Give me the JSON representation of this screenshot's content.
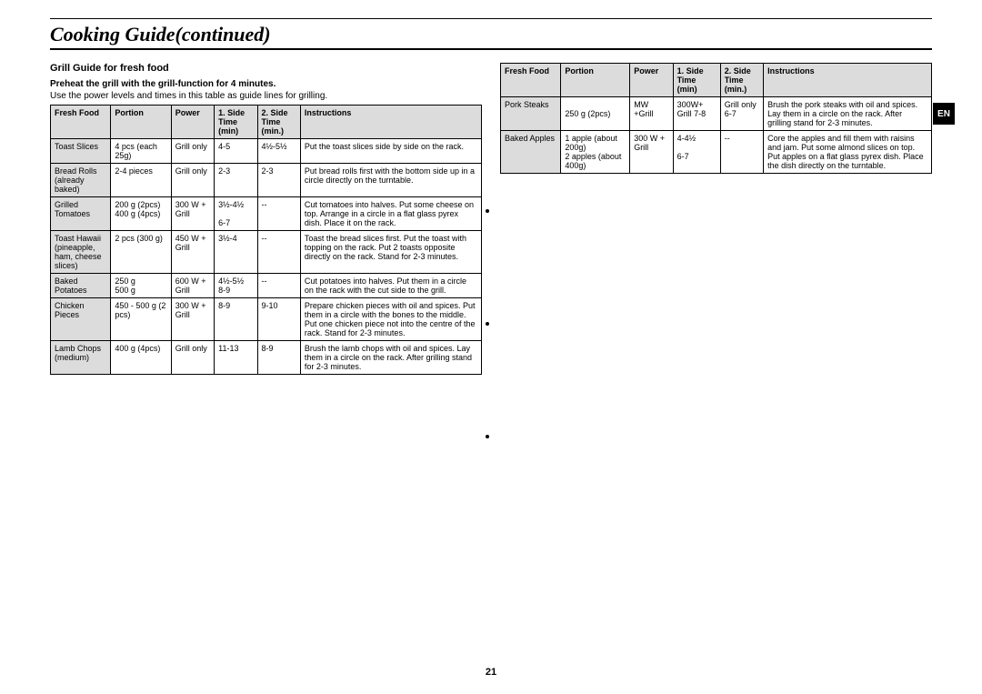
{
  "page_title": "Cooking Guide(continued)",
  "lang_tab": "EN",
  "page_number": "21",
  "section": {
    "title": "Grill Guide for fresh food",
    "preheat": "Preheat the grill with the grill-function for 4 minutes.",
    "note": "Use the power levels and times in this table as guide lines for grilling."
  },
  "headers": {
    "food": "Fresh Food",
    "portion": "Portion",
    "power": "Power",
    "side1": "1. Side Time (min)",
    "side2": "2. Side Time (min.)",
    "instr": "Instructions"
  },
  "left_rows": [
    {
      "food": "Toast Slices",
      "portion": "4 pcs (each 25g)",
      "power": "Grill only",
      "s1": "4-5",
      "s2": "4½-5½",
      "instr": "Put the toast slices side by side on the rack."
    },
    {
      "food": "Bread Rolls (already baked)",
      "portion": "2-4 pieces",
      "power": "Grill only",
      "s1": "2-3",
      "s2": "2-3",
      "instr": "Put bread rolls first with the bottom side up in a circle directly on the turntable."
    },
    {
      "food": "Grilled Tomatoes",
      "portion": "200 g (2pcs)\n400 g (4pcs)",
      "power": "300 W + Grill",
      "s1": "3½-4½\n\n6-7",
      "s2": "--",
      "instr": "Cut tomatoes into halves. Put some cheese on top. Arrange in a circle in a flat glass pyrex dish. Place it on the rack."
    },
    {
      "food": "Toast Hawaii (pineapple, ham, cheese slices)",
      "portion": "2 pcs (300 g)",
      "power": "450 W + Grill",
      "s1": "3½-4",
      "s2": "--",
      "instr": "Toast the bread slices first. Put the toast with topping on the rack. Put 2 toasts opposite directly on the rack. Stand for 2-3 minutes."
    },
    {
      "food": "Baked Potatoes",
      "portion": "250 g\n500 g",
      "power": "600 W + Grill",
      "s1": "4½-5½\n8-9",
      "s2": "--",
      "instr": "Cut potatoes into halves. Put them in a circle on the rack with the cut side to the grill."
    },
    {
      "food": "Chicken Pieces",
      "portion": "450 - 500 g (2 pcs)",
      "power": "300 W + Grill",
      "s1": "8-9",
      "s2": "9-10",
      "instr": "Prepare chicken pieces with oil and spices. Put them in a circle with the bones to the middle. Put one chicken piece not into the centre of the rack. Stand for 2-3 minutes."
    },
    {
      "food": "Lamb Chops (medium)",
      "portion": "400 g (4pcs)",
      "power": "Grill only",
      "s1": "11-13",
      "s2": "8-9",
      "instr": "Brush the lamb chops with oil and spices. Lay them in a circle on the rack. After grilling stand for 2-3 minutes."
    }
  ],
  "right_rows": [
    {
      "food": "Pork Steaks",
      "portion": "\n250 g (2pcs)",
      "power": "MW +Grill",
      "s1": "300W+ Grill 7-8",
      "s2": "Grill only 6-7",
      "instr": "Brush the pork steaks with oil and spices. Lay them in a circle on the rack. After grilling stand for 2-3 minutes."
    },
    {
      "food": "Baked Apples",
      "portion": "1 apple (about 200g)\n2 apples (about 400g)",
      "power": "300 W + Grill",
      "s1": "4-4½\n\n6-7",
      "s2": "--",
      "instr": "Core the apples and fill them with raisins and jam. Put some almond slices on top. Put apples on a flat glass pyrex dish. Place the dish directly on the turntable."
    }
  ]
}
